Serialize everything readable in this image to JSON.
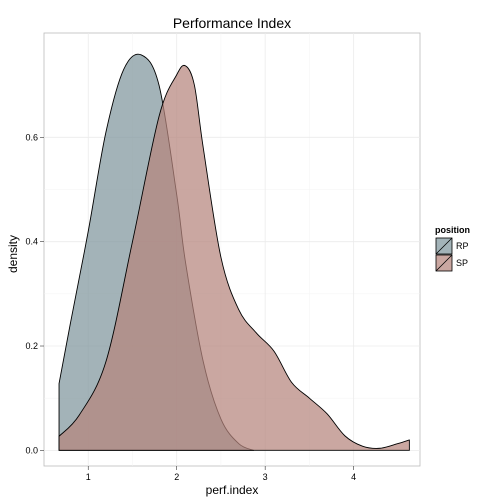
{
  "chart_data": {
    "type": "area",
    "title": "Performance Index",
    "xlabel": "perf.index",
    "ylabel": "density",
    "xlim": [
      0.5,
      4.75
    ],
    "ylim": [
      -0.03,
      0.8
    ],
    "x_ticks": [
      1,
      2,
      3,
      4
    ],
    "x_tick_labels": [
      "1",
      "2",
      "3",
      "4"
    ],
    "y_ticks": [
      0.0,
      0.2,
      0.4,
      0.6
    ],
    "y_tick_labels": [
      "0.0",
      "0.2",
      "0.4",
      "0.6"
    ],
    "grid": true,
    "legend": {
      "title": "position",
      "placement": "right"
    },
    "series": [
      {
        "name": "RP",
        "color": "#7f959d",
        "x": [
          0.67,
          0.8,
          1.0,
          1.2,
          1.4,
          1.6,
          1.8,
          2.0,
          2.1,
          2.3,
          2.5,
          2.7,
          2.87
        ],
        "y": [
          0.128,
          0.245,
          0.42,
          0.61,
          0.73,
          0.758,
          0.7,
          0.49,
          0.36,
          0.17,
          0.06,
          0.013,
          0.0
        ]
      },
      {
        "name": "SP",
        "color": "#b5857d",
        "x": [
          0.67,
          0.9,
          1.2,
          1.5,
          1.8,
          2.0,
          2.1,
          2.2,
          2.3,
          2.5,
          2.7,
          2.9,
          3.1,
          3.3,
          3.5,
          3.7,
          3.9,
          4.1,
          4.3,
          4.5,
          4.63
        ],
        "y": [
          0.027,
          0.068,
          0.17,
          0.4,
          0.64,
          0.72,
          0.737,
          0.7,
          0.58,
          0.37,
          0.27,
          0.225,
          0.19,
          0.13,
          0.1,
          0.07,
          0.028,
          0.008,
          0.004,
          0.013,
          0.02
        ]
      }
    ]
  }
}
